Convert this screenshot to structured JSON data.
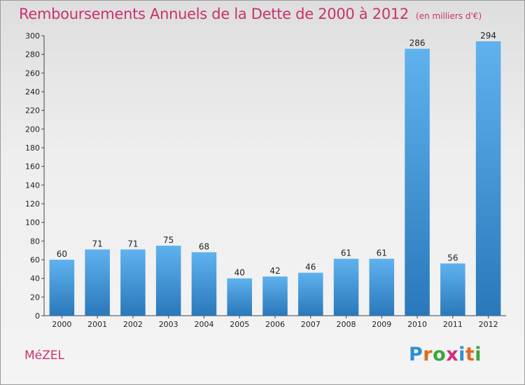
{
  "title": "Remboursements Annuels de la Dette de 2000 à 2012",
  "unit": "(en milliers d'€)",
  "commune": "MéZEL",
  "logo": {
    "letters": [
      "P",
      "r",
      "o",
      "x",
      "i",
      "t",
      "i"
    ],
    "colors": [
      "#2a8fd8",
      "#e06a1c",
      "#3aa53a",
      "#d12f7a",
      "#2a8fd8",
      "#e06a1c",
      "#3aa53a"
    ]
  },
  "colors": {
    "bar_top": "#5fb2ee",
    "bar_bottom": "#2a78bb",
    "title": "#c8326e"
  },
  "chart_data": {
    "type": "bar",
    "title": "Remboursements Annuels de la Dette de 2000 à 2012",
    "subtitle": "(en milliers d'€)",
    "categories": [
      "2000",
      "2001",
      "2002",
      "2003",
      "2004",
      "2005",
      "2006",
      "2007",
      "2008",
      "2009",
      "2010",
      "2011",
      "2012"
    ],
    "values": [
      60,
      71,
      71,
      75,
      68,
      40,
      42,
      46,
      61,
      61,
      286,
      56,
      294
    ],
    "yticks": [
      0,
      20,
      40,
      60,
      80,
      100,
      120,
      140,
      160,
      180,
      200,
      220,
      240,
      260,
      280,
      300
    ],
    "ylim": [
      0,
      300
    ],
    "grid": false
  }
}
